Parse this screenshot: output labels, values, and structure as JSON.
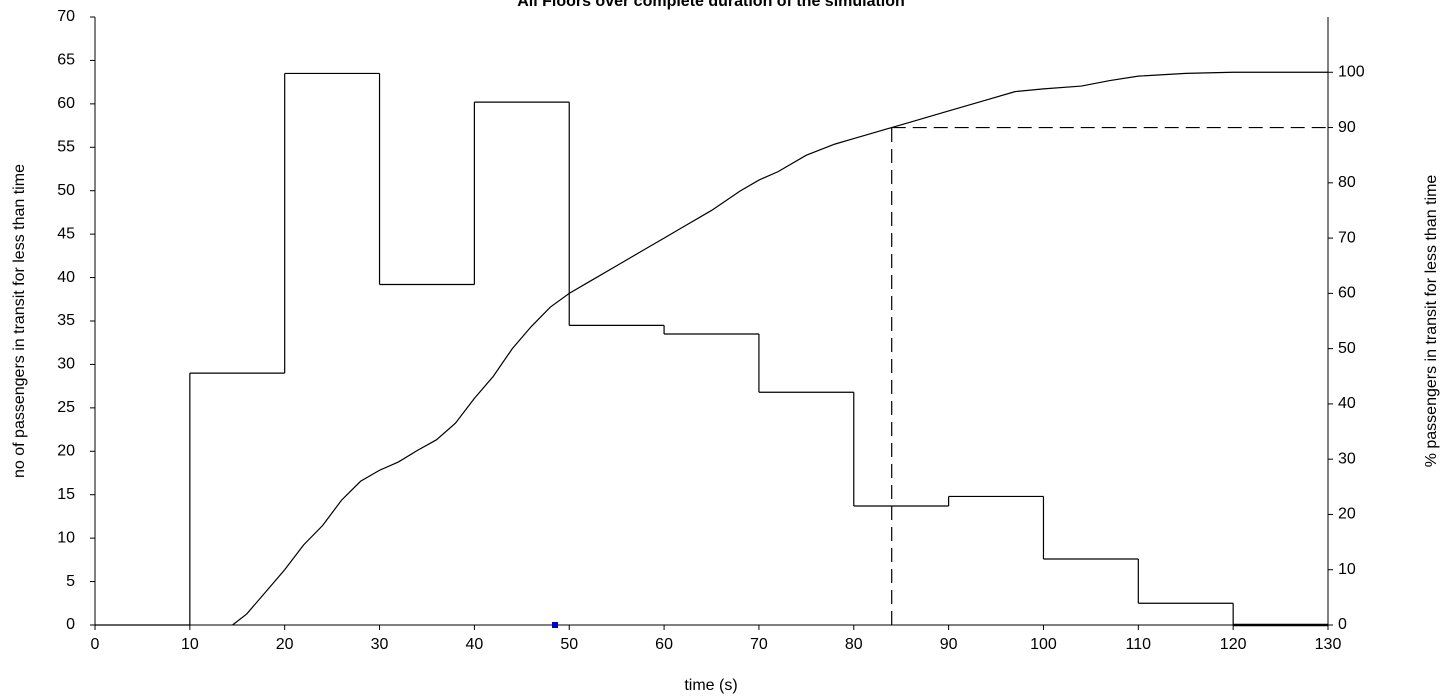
{
  "chart_data": {
    "type": "histogram",
    "title": "All Floors over complete duration of the simulation",
    "x_label": "time (s)",
    "y_label": "no of passengers in transit for less than time",
    "y2_label": "% passengers in transit for less than time",
    "bins": [
      0,
      10,
      20,
      30,
      40,
      50,
      60,
      70,
      80,
      90,
      100,
      110,
      120,
      130
    ],
    "counts": [
      0,
      29,
      63.5,
      39.2,
      60.2,
      34.5,
      33.5,
      26.8,
      13.7,
      14.8,
      7.6,
      2.5,
      0
    ],
    "color": "#000000",
    "line": {
      "axis": "y2",
      "color": "#000000",
      "x": [
        14.5,
        16,
        18,
        20,
        22,
        24,
        26,
        28,
        30,
        32,
        34,
        36,
        38,
        40,
        42,
        44,
        46,
        48,
        50,
        52,
        55,
        58,
        60,
        62,
        65,
        68,
        70,
        72,
        75,
        78,
        80,
        82,
        84,
        86,
        90,
        94,
        97,
        100,
        104,
        107,
        110,
        115,
        120,
        130
      ],
      "values": [
        0,
        2,
        6,
        10,
        14.5,
        18,
        22.6,
        26,
        28,
        29.5,
        31.6,
        33.5,
        36.5,
        41,
        45,
        50,
        54,
        57.5,
        60,
        62,
        65,
        68,
        70,
        72,
        75,
        78.5,
        80.5,
        82,
        85,
        87,
        88,
        89,
        90,
        91,
        93,
        95,
        96.5,
        97,
        97.5,
        98.5,
        99.3,
        99.8,
        100,
        100
      ]
    },
    "percentile": {
      "x": 84,
      "y2": 90
    },
    "point": {
      "x": 48.5,
      "y": 0,
      "color": "#0000cc"
    },
    "xlim": [
      0,
      130
    ],
    "ylim": [
      0,
      70
    ],
    "y2lim": [
      0,
      110
    ],
    "xticks": [
      0,
      10,
      20,
      30,
      40,
      50,
      60,
      70,
      80,
      90,
      100,
      110,
      120,
      130
    ],
    "yticks": [
      0,
      5,
      10,
      15,
      20,
      25,
      30,
      35,
      40,
      45,
      50,
      55,
      60,
      65,
      70
    ],
    "y2ticks": [
      0,
      10,
      20,
      30,
      40,
      50,
      60,
      70,
      80,
      90,
      100
    ]
  }
}
